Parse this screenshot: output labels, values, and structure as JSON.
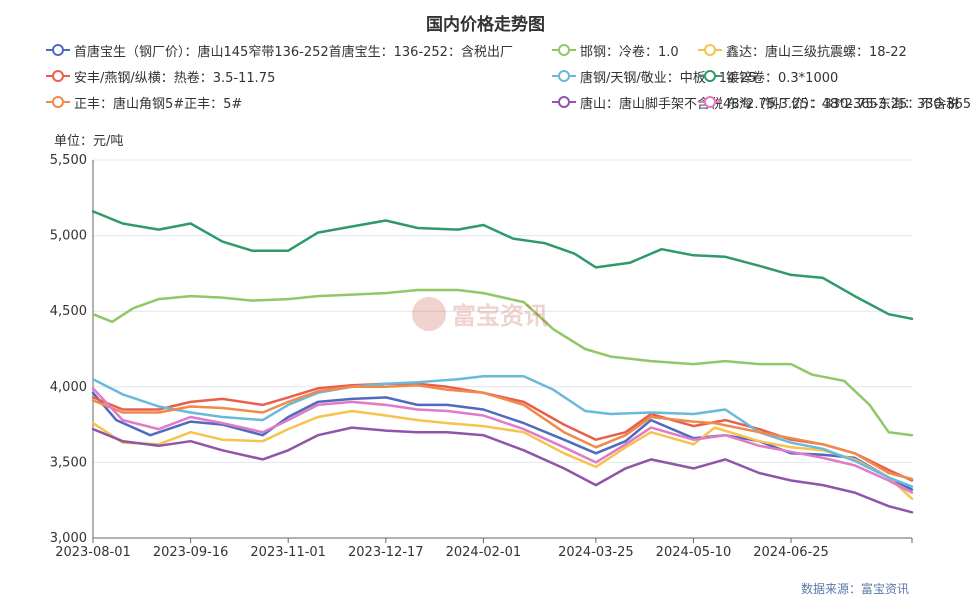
{
  "chart_data": {
    "type": "line",
    "title": "国内价格走势图",
    "ylabel": "单位：元/吨",
    "source": "数据来源：富宝资讯",
    "watermark": "富宝资讯",
    "ylim": [
      3000,
      5500
    ],
    "yticks": [
      "3,000",
      "3,500",
      "4,000",
      "4,500",
      "5,000",
      "5,500"
    ],
    "ytick_values": [
      3000,
      3500,
      4000,
      4500,
      5000,
      5500
    ],
    "xlim": [
      "2023-08-01",
      "2024-08-21"
    ],
    "xticks": [
      "2023-08-01",
      "2023-09-16",
      "2023-11-01",
      "2023-12-17",
      "2024-02-01",
      "2024-03-25",
      "2024-05-10",
      "2024-06-25"
    ],
    "grid": "horizontal",
    "legend_position": "top",
    "series": [
      {
        "name": "首唐宝生（钢厂价）：唐山145窄带136-252首唐宝生：136-252：含税出厂",
        "color": "#4f6bbd",
        "points": [
          [
            "2023-08-01",
            3960
          ],
          [
            "2023-08-12",
            3780
          ],
          [
            "2023-08-28",
            3680
          ],
          [
            "2023-09-16",
            3770
          ],
          [
            "2023-10-01",
            3750
          ],
          [
            "2023-10-20",
            3680
          ],
          [
            "2023-11-01",
            3800
          ],
          [
            "2023-11-15",
            3900
          ],
          [
            "2023-12-01",
            3920
          ],
          [
            "2023-12-17",
            3930
          ],
          [
            "2024-01-01",
            3880
          ],
          [
            "2024-01-15",
            3880
          ],
          [
            "2024-02-01",
            3850
          ],
          [
            "2024-02-20",
            3760
          ],
          [
            "2024-03-10",
            3650
          ],
          [
            "2024-03-25",
            3560
          ],
          [
            "2024-04-08",
            3640
          ],
          [
            "2024-04-20",
            3780
          ],
          [
            "2024-05-10",
            3660
          ],
          [
            "2024-05-25",
            3680
          ],
          [
            "2024-06-10",
            3640
          ],
          [
            "2024-06-25",
            3560
          ],
          [
            "2024-07-10",
            3550
          ],
          [
            "2024-07-25",
            3530
          ],
          [
            "2024-08-10",
            3400
          ],
          [
            "2024-08-21",
            3320
          ]
        ]
      },
      {
        "name": "邯钢：冷卷：1.0",
        "color": "#91c764",
        "points": [
          [
            "2023-08-01",
            4480
          ],
          [
            "2023-08-10",
            4430
          ],
          [
            "2023-08-20",
            4520
          ],
          [
            "2023-09-01",
            4580
          ],
          [
            "2023-09-16",
            4600
          ],
          [
            "2023-10-01",
            4590
          ],
          [
            "2023-10-15",
            4570
          ],
          [
            "2023-11-01",
            4580
          ],
          [
            "2023-11-15",
            4600
          ],
          [
            "2023-12-01",
            4610
          ],
          [
            "2023-12-17",
            4620
          ],
          [
            "2024-01-01",
            4640
          ],
          [
            "2024-01-20",
            4640
          ],
          [
            "2024-02-01",
            4620
          ],
          [
            "2024-02-20",
            4560
          ],
          [
            "2024-03-05",
            4380
          ],
          [
            "2024-03-20",
            4250
          ],
          [
            "2024-04-01",
            4200
          ],
          [
            "2024-04-20",
            4170
          ],
          [
            "2024-05-10",
            4150
          ],
          [
            "2024-05-25",
            4170
          ],
          [
            "2024-06-10",
            4150
          ],
          [
            "2024-06-25",
            4150
          ],
          [
            "2024-07-05",
            4080
          ],
          [
            "2024-07-20",
            4040
          ],
          [
            "2024-08-01",
            3880
          ],
          [
            "2024-08-10",
            3700
          ],
          [
            "2024-08-21",
            3680
          ]
        ]
      },
      {
        "name": "鑫达：唐山三级抗震螺：18-22",
        "color": "#f6c34e",
        "points": [
          [
            "2023-08-01",
            3760
          ],
          [
            "2023-08-15",
            3630
          ],
          [
            "2023-09-01",
            3620
          ],
          [
            "2023-09-16",
            3700
          ],
          [
            "2023-10-01",
            3650
          ],
          [
            "2023-10-20",
            3640
          ],
          [
            "2023-11-01",
            3720
          ],
          [
            "2023-11-15",
            3800
          ],
          [
            "2023-12-01",
            3840
          ],
          [
            "2023-12-17",
            3810
          ],
          [
            "2024-01-01",
            3780
          ],
          [
            "2024-01-15",
            3760
          ],
          [
            "2024-02-01",
            3740
          ],
          [
            "2024-02-20",
            3700
          ],
          [
            "2024-03-10",
            3560
          ],
          [
            "2024-03-25",
            3470
          ],
          [
            "2024-04-08",
            3600
          ],
          [
            "2024-04-20",
            3700
          ],
          [
            "2024-05-10",
            3620
          ],
          [
            "2024-05-20",
            3730
          ],
          [
            "2024-06-10",
            3640
          ],
          [
            "2024-06-25",
            3600
          ],
          [
            "2024-07-10",
            3580
          ],
          [
            "2024-07-25",
            3520
          ],
          [
            "2024-08-10",
            3400
          ],
          [
            "2024-08-21",
            3260
          ]
        ]
      },
      {
        "name": "安丰/燕钢/纵横：热卷：3.5-11.75",
        "color": "#e8604d",
        "points": [
          [
            "2023-08-01",
            3930
          ],
          [
            "2023-08-15",
            3850
          ],
          [
            "2023-09-01",
            3850
          ],
          [
            "2023-09-16",
            3900
          ],
          [
            "2023-10-01",
            3920
          ],
          [
            "2023-10-20",
            3880
          ],
          [
            "2023-11-01",
            3930
          ],
          [
            "2023-11-15",
            3990
          ],
          [
            "2023-12-01",
            4010
          ],
          [
            "2023-12-17",
            4020
          ],
          [
            "2024-01-01",
            4020
          ],
          [
            "2024-01-15",
            4000
          ],
          [
            "2024-02-01",
            3960
          ],
          [
            "2024-02-20",
            3900
          ],
          [
            "2024-03-10",
            3750
          ],
          [
            "2024-03-25",
            3650
          ],
          [
            "2024-04-08",
            3700
          ],
          [
            "2024-04-20",
            3820
          ],
          [
            "2024-05-10",
            3740
          ],
          [
            "2024-05-25",
            3780
          ],
          [
            "2024-06-10",
            3720
          ],
          [
            "2024-06-25",
            3650
          ],
          [
            "2024-07-10",
            3620
          ],
          [
            "2024-07-25",
            3560
          ],
          [
            "2024-08-10",
            3450
          ],
          [
            "2024-08-21",
            3380
          ]
        ]
      },
      {
        "name": "唐钢/天钢/敬业：中板：14-25",
        "color": "#6ab9dc",
        "points": [
          [
            "2023-08-01",
            4050
          ],
          [
            "2023-08-15",
            3950
          ],
          [
            "2023-09-01",
            3870
          ],
          [
            "2023-09-16",
            3830
          ],
          [
            "2023-10-01",
            3800
          ],
          [
            "2023-10-20",
            3780
          ],
          [
            "2023-11-01",
            3880
          ],
          [
            "2023-11-15",
            3960
          ],
          [
            "2023-12-01",
            4000
          ],
          [
            "2023-12-17",
            4020
          ],
          [
            "2024-01-01",
            4030
          ],
          [
            "2024-01-20",
            4050
          ],
          [
            "2024-02-01",
            4070
          ],
          [
            "2024-02-20",
            4070
          ],
          [
            "2024-03-05",
            3980
          ],
          [
            "2024-03-20",
            3840
          ],
          [
            "2024-04-01",
            3820
          ],
          [
            "2024-04-20",
            3830
          ],
          [
            "2024-05-10",
            3820
          ],
          [
            "2024-05-25",
            3850
          ],
          [
            "2024-06-10",
            3700
          ],
          [
            "2024-06-25",
            3630
          ],
          [
            "2024-07-10",
            3590
          ],
          [
            "2024-07-25",
            3510
          ],
          [
            "2024-08-10",
            3400
          ],
          [
            "2024-08-21",
            3340
          ]
        ]
      },
      {
        "name": "镀锌卷：0.3*1000",
        "color": "#2e9a6a",
        "points": [
          [
            "2023-08-01",
            5160
          ],
          [
            "2023-08-15",
            5080
          ],
          [
            "2023-09-01",
            5040
          ],
          [
            "2023-09-16",
            5080
          ],
          [
            "2023-10-01",
            4960
          ],
          [
            "2023-10-15",
            4900
          ],
          [
            "2023-11-01",
            4900
          ],
          [
            "2023-11-15",
            5020
          ],
          [
            "2023-12-01",
            5060
          ],
          [
            "2023-12-17",
            5100
          ],
          [
            "2024-01-01",
            5050
          ],
          [
            "2024-01-20",
            5040
          ],
          [
            "2024-02-01",
            5070
          ],
          [
            "2024-02-15",
            4980
          ],
          [
            "2024-03-01",
            4950
          ],
          [
            "2024-03-15",
            4880
          ],
          [
            "2024-03-25",
            4790
          ],
          [
            "2024-04-10",
            4820
          ],
          [
            "2024-04-25",
            4910
          ],
          [
            "2024-05-10",
            4870
          ],
          [
            "2024-05-25",
            4860
          ],
          [
            "2024-06-10",
            4800
          ],
          [
            "2024-06-25",
            4740
          ],
          [
            "2024-07-10",
            4720
          ],
          [
            "2024-07-25",
            4600
          ],
          [
            "2024-08-10",
            4480
          ],
          [
            "2024-08-21",
            4450
          ]
        ]
      },
      {
        "name": "正丰：唐山角钢5#正丰：5#",
        "color": "#ee8a4b",
        "points": [
          [
            "2023-08-01",
            3910
          ],
          [
            "2023-08-15",
            3830
          ],
          [
            "2023-09-01",
            3830
          ],
          [
            "2023-09-16",
            3870
          ],
          [
            "2023-10-01",
            3860
          ],
          [
            "2023-10-20",
            3830
          ],
          [
            "2023-11-01",
            3900
          ],
          [
            "2023-11-15",
            3970
          ],
          [
            "2023-12-01",
            4000
          ],
          [
            "2023-12-17",
            4000
          ],
          [
            "2024-01-01",
            4010
          ],
          [
            "2024-01-15",
            3980
          ],
          [
            "2024-02-01",
            3960
          ],
          [
            "2024-02-20",
            3880
          ],
          [
            "2024-03-10",
            3700
          ],
          [
            "2024-03-25",
            3600
          ],
          [
            "2024-04-08",
            3680
          ],
          [
            "2024-04-20",
            3800
          ],
          [
            "2024-05-10",
            3770
          ],
          [
            "2024-05-20",
            3760
          ],
          [
            "2024-06-10",
            3700
          ],
          [
            "2024-06-25",
            3660
          ],
          [
            "2024-07-10",
            3620
          ],
          [
            "2024-07-25",
            3560
          ],
          [
            "2024-08-10",
            3430
          ],
          [
            "2024-08-21",
            3390
          ]
        ]
      },
      {
        "name": "唐山：唐山脚手架不含税48*2.75-3.25：48*2.75-3.25：不含税",
        "color": "#8e55a9",
        "points": [
          [
            "2023-08-01",
            3720
          ],
          [
            "2023-08-15",
            3640
          ],
          [
            "2023-09-01",
            3610
          ],
          [
            "2023-09-16",
            3640
          ],
          [
            "2023-10-01",
            3580
          ],
          [
            "2023-10-20",
            3520
          ],
          [
            "2023-11-01",
            3580
          ],
          [
            "2023-11-15",
            3680
          ],
          [
            "2023-12-01",
            3730
          ],
          [
            "2023-12-17",
            3710
          ],
          [
            "2024-01-01",
            3700
          ],
          [
            "2024-01-15",
            3700
          ],
          [
            "2024-02-01",
            3680
          ],
          [
            "2024-02-20",
            3580
          ],
          [
            "2024-03-10",
            3460
          ],
          [
            "2024-03-25",
            3350
          ],
          [
            "2024-04-08",
            3460
          ],
          [
            "2024-04-20",
            3520
          ],
          [
            "2024-05-10",
            3460
          ],
          [
            "2024-05-25",
            3520
          ],
          [
            "2024-06-10",
            3430
          ],
          [
            "2024-06-25",
            3380
          ],
          [
            "2024-07-10",
            3350
          ],
          [
            "2024-07-25",
            3300
          ],
          [
            "2024-08-10",
            3210
          ],
          [
            "2024-08-21",
            3170
          ]
        ]
      },
      {
        "name": "东海（钢厂价）：330-365东海：330-365",
        "color": "#e17ac8",
        "points": [
          [
            "2023-08-01",
            3990
          ],
          [
            "2023-08-15",
            3780
          ],
          [
            "2023-09-01",
            3720
          ],
          [
            "2023-09-16",
            3800
          ],
          [
            "2023-10-01",
            3760
          ],
          [
            "2023-10-20",
            3700
          ],
          [
            "2023-11-01",
            3780
          ],
          [
            "2023-11-15",
            3880
          ],
          [
            "2023-12-01",
            3900
          ],
          [
            "2023-12-17",
            3880
          ],
          [
            "2024-01-01",
            3850
          ],
          [
            "2024-01-15",
            3840
          ],
          [
            "2024-02-01",
            3810
          ],
          [
            "2024-02-20",
            3720
          ],
          [
            "2024-03-10",
            3600
          ],
          [
            "2024-03-25",
            3500
          ],
          [
            "2024-04-08",
            3620
          ],
          [
            "2024-04-20",
            3730
          ],
          [
            "2024-05-10",
            3650
          ],
          [
            "2024-05-25",
            3680
          ],
          [
            "2024-06-10",
            3610
          ],
          [
            "2024-06-25",
            3570
          ],
          [
            "2024-07-10",
            3530
          ],
          [
            "2024-07-25",
            3480
          ],
          [
            "2024-08-10",
            3380
          ],
          [
            "2024-08-21",
            3300
          ]
        ]
      }
    ]
  }
}
